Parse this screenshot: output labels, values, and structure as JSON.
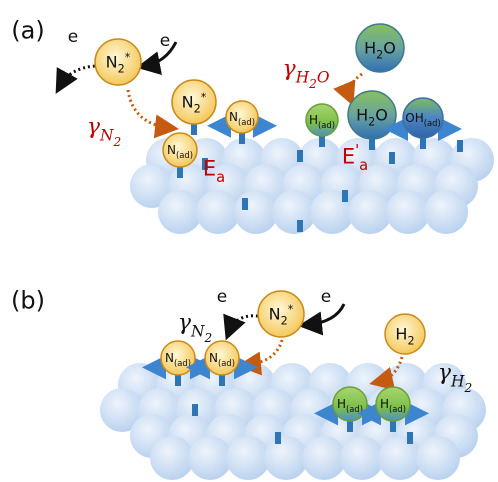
{
  "panel_a": {
    "label": "(a)",
    "electron_out": "e",
    "electron_in": "e",
    "excited": {
      "base": "N",
      "sub": "2",
      "sup": "*"
    },
    "gamma_n2": {
      "base": "γ",
      "sub": "N",
      "sub2": "2"
    },
    "adsorbing": {
      "base": "N",
      "sub": "2",
      "sup": "*"
    },
    "n_ad_1": {
      "base": "N",
      "sub": "(ad)"
    },
    "n_ad_2": {
      "base": "N",
      "sub": "(ad)"
    },
    "barrier_n": {
      "base": "E",
      "sub": "a"
    },
    "gamma_h2o": {
      "base": "γ",
      "sub": "H",
      "sub2": "2",
      "sub_tail": "O"
    },
    "water_gas": {
      "base": "H",
      "sub": "2",
      "tail": "O"
    },
    "h_ad": {
      "base": "H",
      "sub": "(ad)"
    },
    "water_adsorbed": {
      "base": "H",
      "sub": "2",
      "tail": "O"
    },
    "hydroxyl": {
      "base": "OH",
      "sub": "(ad)"
    },
    "barrier_h2o": {
      "base": "E",
      "prime": "'",
      "sub": "a"
    }
  },
  "panel_b": {
    "label": "(b)",
    "electron_out": "e",
    "electron_in": "e",
    "gamma_n2": {
      "base": "γ",
      "sub": "N",
      "sub2": "2"
    },
    "excited": {
      "base": "N",
      "sub": "2",
      "sup": "*"
    },
    "n_ad_1": {
      "base": "N",
      "sub": "(ad)"
    },
    "n_ad_2": {
      "base": "N",
      "sub": "(ad)"
    },
    "hydrogen_gas": {
      "base": "H",
      "sub": "2"
    },
    "gamma_h2": {
      "base": "γ",
      "sub": "H",
      "sub2": "2"
    },
    "h_ad_1": {
      "base": "H",
      "sub": "(ad)"
    },
    "h_ad_2": {
      "base": "H",
      "sub": "(ad)"
    }
  }
}
